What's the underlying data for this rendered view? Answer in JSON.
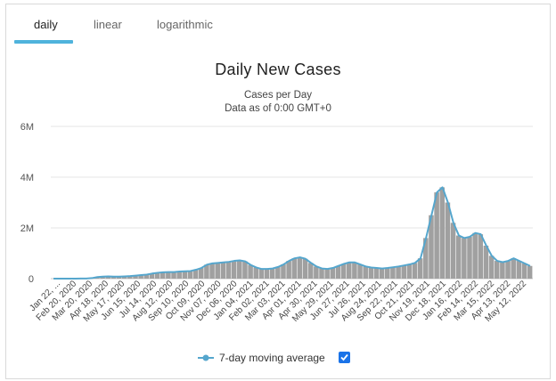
{
  "tabs": [
    {
      "label": "daily"
    },
    {
      "label": "linear"
    },
    {
      "label": "logarithmic"
    }
  ],
  "colors": {
    "bar": "#a0a0a0",
    "line": "#55a6cd",
    "accent": "#4fb3dc",
    "checkbox": "#1a73e8"
  },
  "legend": {
    "label": "7-day moving average",
    "checked": true
  },
  "chart_data": {
    "type": "bar",
    "title": "Daily New Cases",
    "subtitle_1": "Cases per Day",
    "subtitle_2": "Data as of 0:00 GMT+0",
    "ylim": [
      0,
      6000000
    ],
    "yticks": [
      {
        "value": 0,
        "label": "0"
      },
      {
        "value": 2000000,
        "label": "2M"
      },
      {
        "value": 4000000,
        "label": "4M"
      },
      {
        "value": 6000000,
        "label": "6M"
      }
    ],
    "x_tick_labels": [
      "Jan 22, ...",
      "Feb 20, 2020",
      "Mar 20, 2020",
      "Apr 18, 2020",
      "May 17, 2020",
      "Jun 15, 2020",
      "Jul 14, 2020",
      "Aug 12, 2020",
      "Sep 10, 2020",
      "Oct 09, 2020",
      "Nov 07, 2020",
      "Dec 06, 2020",
      "Jan 04, 2021",
      "Feb 02, 2021",
      "Mar 03, 2021",
      "Apr 01, 2021",
      "Apr 30, 2021",
      "May 29, 2021",
      "Jun 27, 2021",
      "Jul 26, 2021",
      "Aug 24, 2021",
      "Sep 22, 2021",
      "Oct 21, 2021",
      "Nov 19, 2021",
      "Dec 18, 2021",
      "Jan 16, 2022",
      "Feb 14, 2022",
      "Mar 15, 2022",
      "Apr 13, 2022",
      "May 12, 2022"
    ],
    "series": [
      {
        "name": "Daily new cases",
        "kind": "bar",
        "values": [
          0,
          0,
          1000,
          2000,
          2000,
          3000,
          5000,
          20000,
          60000,
          80000,
          90000,
          80000,
          80000,
          90000,
          100000,
          120000,
          140000,
          160000,
          200000,
          230000,
          250000,
          260000,
          260000,
          280000,
          290000,
          300000,
          350000,
          420000,
          550000,
          600000,
          620000,
          640000,
          660000,
          700000,
          720000,
          680000,
          540000,
          440000,
          380000,
          380000,
          400000,
          460000,
          560000,
          700000,
          800000,
          840000,
          780000,
          620000,
          480000,
          400000,
          380000,
          420000,
          500000,
          580000,
          640000,
          640000,
          560000,
          480000,
          440000,
          420000,
          400000,
          420000,
          450000,
          480000,
          520000,
          560000,
          620000,
          800000,
          1600000,
          2500000,
          3400000,
          3600000,
          3000000,
          2200000,
          1700000,
          1600000,
          1650000,
          1800000,
          1750000,
          1300000,
          900000,
          700000,
          650000,
          700000,
          800000,
          700000,
          600000,
          500000
        ]
      },
      {
        "name": "7-day moving average",
        "kind": "line",
        "values": [
          0,
          0,
          1000,
          2000,
          2000,
          3000,
          5000,
          20000,
          60000,
          80000,
          90000,
          80000,
          80000,
          90000,
          100000,
          120000,
          140000,
          160000,
          200000,
          230000,
          250000,
          260000,
          260000,
          280000,
          290000,
          300000,
          350000,
          420000,
          550000,
          600000,
          620000,
          640000,
          660000,
          700000,
          720000,
          680000,
          540000,
          440000,
          380000,
          380000,
          400000,
          460000,
          560000,
          700000,
          800000,
          840000,
          780000,
          620000,
          480000,
          400000,
          380000,
          420000,
          500000,
          580000,
          640000,
          640000,
          560000,
          480000,
          440000,
          420000,
          400000,
          420000,
          450000,
          480000,
          520000,
          560000,
          620000,
          800000,
          1600000,
          2500000,
          3400000,
          3600000,
          3000000,
          2200000,
          1700000,
          1600000,
          1650000,
          1800000,
          1750000,
          1300000,
          900000,
          700000,
          650000,
          700000,
          800000,
          700000,
          600000,
          500000
        ]
      }
    ]
  }
}
